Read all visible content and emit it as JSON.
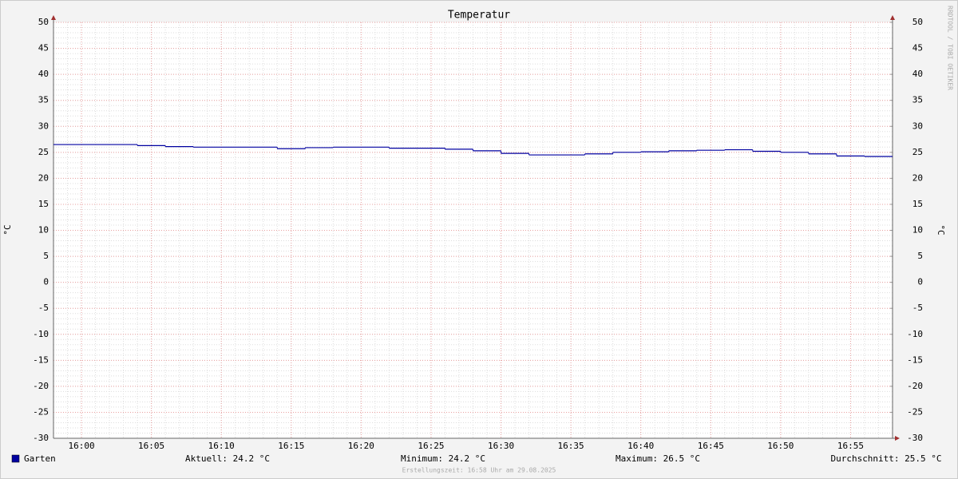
{
  "chart_data": {
    "type": "line",
    "step": "post",
    "title": "Temperatur",
    "y_label": "°C",
    "y2_label": "°C",
    "x": [
      "15:58",
      "16:04",
      "16:06",
      "16:08",
      "16:14",
      "16:16",
      "16:18",
      "16:22",
      "16:26",
      "16:28",
      "16:30",
      "16:32",
      "16:36",
      "16:38",
      "16:40",
      "16:42",
      "16:44",
      "16:46",
      "16:48",
      "16:50",
      "16:52",
      "16:54",
      "16:56"
    ],
    "series": [
      {
        "name": "Garten",
        "color": "#0000a0",
        "values": [
          26.5,
          26.3,
          26.1,
          26.0,
          25.7,
          25.9,
          26.0,
          25.8,
          25.6,
          25.3,
          24.8,
          24.5,
          24.7,
          25.0,
          25.1,
          25.3,
          25.4,
          25.5,
          25.2,
          25.0,
          24.7,
          24.3,
          24.2
        ]
      }
    ],
    "xlim": [
      "15:58",
      "16:58"
    ],
    "xticks": [
      "16:00",
      "16:05",
      "16:10",
      "16:15",
      "16:20",
      "16:25",
      "16:30",
      "16:35",
      "16:40",
      "16:45",
      "16:50",
      "16:55"
    ],
    "ylim": [
      -30,
      50
    ],
    "yticks": [
      -30,
      -25,
      -20,
      -15,
      -10,
      -5,
      0,
      5,
      10,
      15,
      20,
      25,
      30,
      35,
      40,
      45,
      50
    ],
    "y2lim": [
      -30,
      50
    ],
    "y2ticks": [
      -30,
      -25,
      -20,
      -15,
      -10,
      -5,
      0,
      5,
      10,
      15,
      20,
      25,
      30,
      35,
      40,
      45,
      50
    ],
    "grid": true,
    "minor_grid": true,
    "stats": [
      "Aktuell: 24.2 °C",
      "Minimum: 24.2 °C",
      "Maximum: 26.5 °C",
      "Durchschnitt: 25.5 °C"
    ],
    "footer": "Erstellungszeit: 16:58 Uhr am 29.08.2025",
    "watermark": "RRDTOOL / TOBI OETIKER"
  }
}
